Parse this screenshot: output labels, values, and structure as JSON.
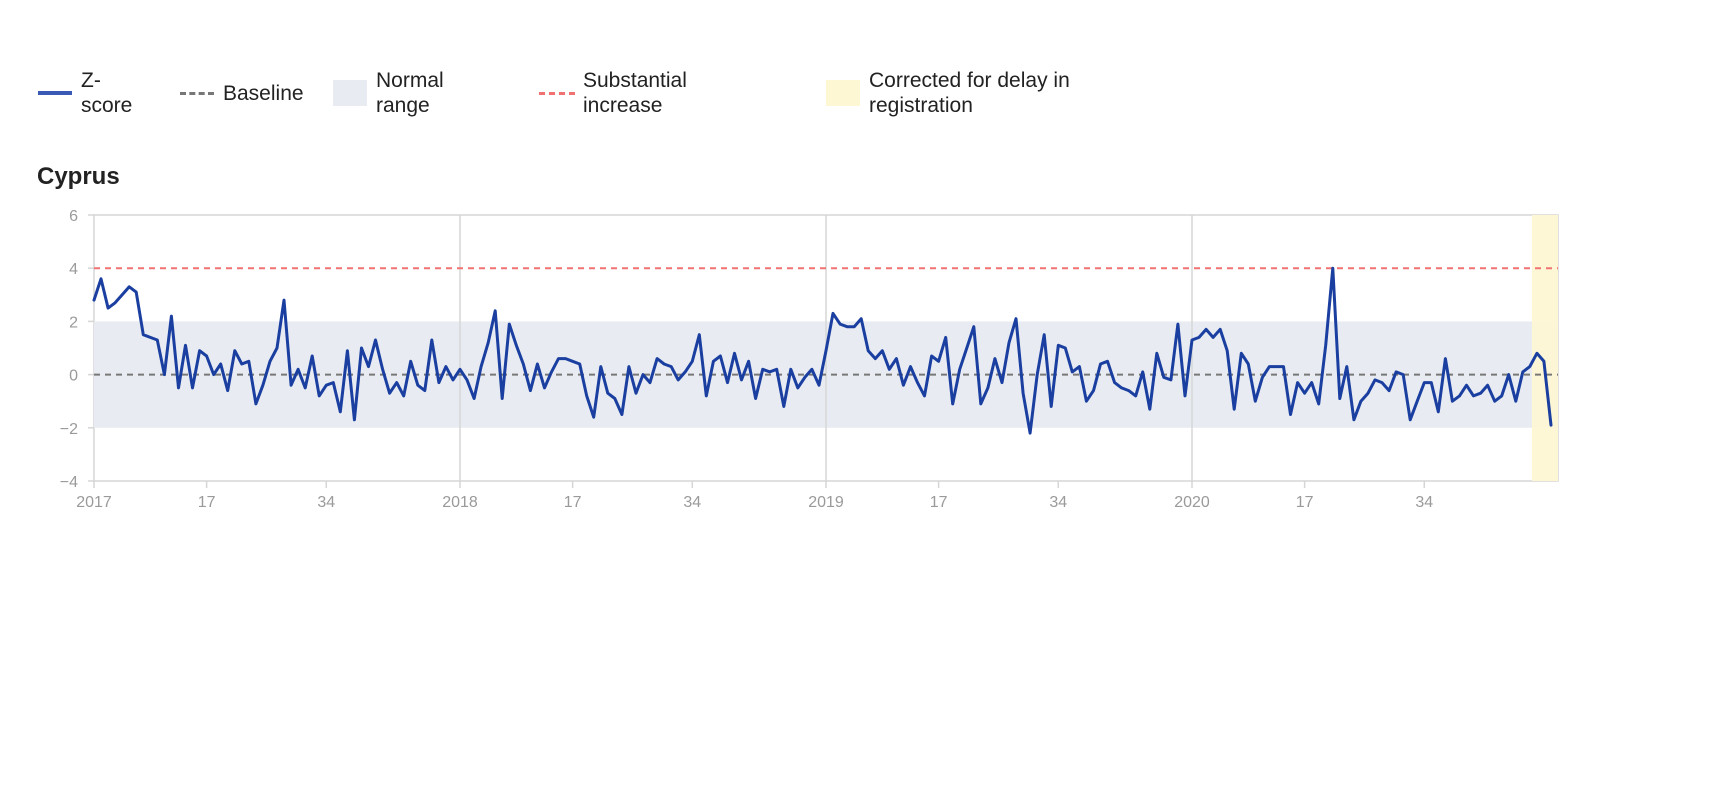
{
  "legend": {
    "zscore": "Z-score",
    "baseline": "Baseline",
    "normal_range": "Normal range",
    "substantial_increase": "Substantial increase",
    "corrected": "Corrected for delay in registration"
  },
  "colors": {
    "zscore_line": "#1a3fa0",
    "baseline": "#777777",
    "normal_range_fill": "#e8ecf2",
    "substantial_increase": "#f07272",
    "corrected_fill": "#fdf7d4",
    "grid": "#d6d6d6",
    "tick_text": "#9a9a9a"
  },
  "chart_data": {
    "type": "line",
    "title": "Cyprus",
    "ylim": [
      -4,
      6
    ],
    "yticks": [
      6,
      4,
      2,
      0,
      -2,
      -4
    ],
    "x_ticks": [
      {
        "label": "2017",
        "week": 1
      },
      {
        "label": "17",
        "week": 17
      },
      {
        "label": "34",
        "week": 34
      },
      {
        "label": "2018",
        "week": 53
      },
      {
        "label": "17",
        "week": 69
      },
      {
        "label": "34",
        "week": 86
      },
      {
        "label": "2019",
        "week": 105
      },
      {
        "label": "17",
        "week": 121
      },
      {
        "label": "34",
        "week": 138
      },
      {
        "label": "2020",
        "week": 157
      },
      {
        "label": "17",
        "week": 173
      },
      {
        "label": "34",
        "week": 190
      }
    ],
    "x_range": [
      1,
      209
    ],
    "year_gridlines_week": [
      53,
      105,
      157
    ],
    "baseline": 0,
    "normal_range": [
      -2,
      2
    ],
    "substantial_increase": 4,
    "corrected_weeks": [
      206,
      209
    ],
    "series": [
      {
        "name": "Z-score",
        "values": [
          2.8,
          3.6,
          2.5,
          2.7,
          3.0,
          3.3,
          3.1,
          1.5,
          1.4,
          1.3,
          0.0,
          2.2,
          -0.5,
          1.1,
          -0.5,
          0.9,
          0.7,
          0.0,
          0.4,
          -0.6,
          0.9,
          0.4,
          0.5,
          -1.1,
          -0.4,
          0.5,
          1.0,
          2.8,
          -0.4,
          0.2,
          -0.5,
          0.7,
          -0.8,
          -0.4,
          -0.3,
          -1.4,
          0.9,
          -1.7,
          1.0,
          0.3,
          1.3,
          0.2,
          -0.7,
          -0.3,
          -0.8,
          0.5,
          -0.4,
          -0.6,
          1.3,
          -0.3,
          0.3,
          -0.2,
          0.2,
          -0.2,
          -0.9,
          0.3,
          1.2,
          2.4,
          -0.9,
          1.9,
          1.1,
          0.4,
          -0.6,
          0.4,
          -0.5,
          0.1,
          0.6,
          0.6,
          0.5,
          0.4,
          -0.8,
          -1.6,
          0.3,
          -0.7,
          -0.9,
          -1.5,
          0.3,
          -0.7,
          0.0,
          -0.3,
          0.6,
          0.4,
          0.3,
          -0.2,
          0.1,
          0.5,
          1.5,
          -0.8,
          0.5,
          0.7,
          -0.3,
          0.8,
          -0.2,
          0.5,
          -0.9,
          0.2,
          0.1,
          0.2,
          -1.2,
          0.2,
          -0.5,
          -0.1,
          0.2,
          -0.4,
          0.9,
          2.3,
          1.9,
          1.8,
          1.8,
          2.1,
          0.9,
          0.6,
          0.9,
          0.2,
          0.6,
          -0.4,
          0.3,
          -0.3,
          -0.8,
          0.7,
          0.5,
          1.4,
          -1.1,
          0.2,
          1.0,
          1.8,
          -1.1,
          -0.5,
          0.6,
          -0.3,
          1.2,
          2.1,
          -0.7,
          -2.2,
          0.0,
          1.5,
          -1.2,
          1.1,
          1.0,
          0.1,
          0.3,
          -1.0,
          -0.6,
          0.4,
          0.5,
          -0.3,
          -0.5,
          -0.6,
          -0.8,
          0.1,
          -1.3,
          0.8,
          -0.1,
          -0.2,
          1.9,
          -0.8,
          1.3,
          1.4,
          1.7,
          1.4,
          1.7,
          0.9,
          -1.3,
          0.8,
          0.4,
          -1.0,
          -0.1,
          0.3,
          0.3,
          0.3,
          -1.5,
          -0.3,
          -0.7,
          -0.3,
          -1.1,
          1.1,
          4.0,
          -0.9,
          0.3,
          -1.7,
          -1.0,
          -0.7,
          -0.2,
          -0.3,
          -0.6,
          0.1,
          0.0,
          -1.7,
          -1.0,
          -0.3,
          -0.3,
          -1.4,
          0.6,
          -1.0,
          -0.8,
          -0.4,
          -0.8,
          -0.7,
          -0.4,
          -1.0,
          -0.8,
          0.0,
          -1.0,
          0.1,
          0.3,
          0.8,
          0.5,
          -1.9
        ]
      }
    ]
  }
}
